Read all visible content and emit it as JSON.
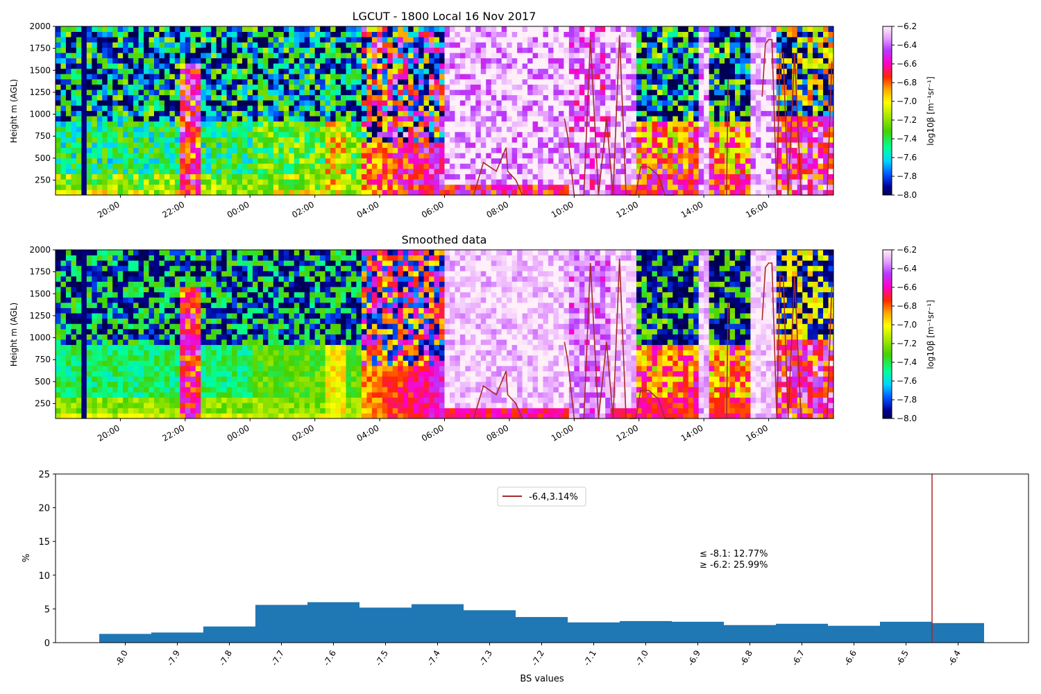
{
  "chart_data": [
    {
      "type": "heatmap",
      "title": "LGCUT - 1800 Local 16 Nov 2017",
      "ylabel": "Height m (AGL)",
      "ylim": [
        80,
        2000
      ],
      "yticks": [
        "250",
        "500",
        "750",
        "1000",
        "1250",
        "1500",
        "1750",
        "2000"
      ],
      "ytick_values": [
        250,
        500,
        750,
        1000,
        1250,
        1500,
        1750,
        2000
      ],
      "xlim_hours": [
        18.0,
        42.0
      ],
      "xticks": [
        "20:00",
        "22:00",
        "00:00",
        "02:00",
        "04:00",
        "06:00",
        "08:00",
        "10:00",
        "12:00",
        "14:00",
        "16:00"
      ],
      "xtick_hours": [
        20,
        22,
        24,
        26,
        28,
        30,
        32,
        34,
        36,
        38,
        40
      ],
      "colorbar": {
        "label": "log10β [m⁻¹sr⁻¹]",
        "range": [
          -8.0,
          -6.2
        ],
        "ticks": [
          "−6.2",
          "−6.4",
          "−6.6",
          "−6.8",
          "−7.0",
          "−7.2",
          "−7.4",
          "−7.6",
          "−7.8",
          "−8.0"
        ],
        "tick_values": [
          -6.2,
          -6.4,
          -6.6,
          -6.8,
          -7.0,
          -7.2,
          -7.4,
          -7.6,
          -7.8,
          -8.0
        ]
      },
      "overlay_line_color": "#a52a2a"
    },
    {
      "type": "heatmap",
      "title": "Smoothed data",
      "ylabel": "Height m (AGL)",
      "ylim": [
        80,
        2000
      ],
      "yticks": [
        "250",
        "500",
        "750",
        "1000",
        "1250",
        "1500",
        "1750",
        "2000"
      ],
      "ytick_values": [
        250,
        500,
        750,
        1000,
        1250,
        1500,
        1750,
        2000
      ],
      "xlim_hours": [
        18.0,
        42.0
      ],
      "xticks": [
        "20:00",
        "22:00",
        "00:00",
        "02:00",
        "04:00",
        "06:00",
        "08:00",
        "10:00",
        "12:00",
        "14:00",
        "16:00"
      ],
      "xtick_hours": [
        20,
        22,
        24,
        26,
        28,
        30,
        32,
        34,
        36,
        38,
        40
      ],
      "colorbar": {
        "label": "log10β [m⁻¹sr⁻¹]",
        "range": [
          -8.0,
          -6.2
        ],
        "ticks": [
          "−6.2",
          "−6.4",
          "−6.6",
          "−6.8",
          "−7.0",
          "−7.2",
          "−7.4",
          "−7.6",
          "−7.8",
          "−8.0"
        ],
        "tick_values": [
          -6.2,
          -6.4,
          -6.6,
          -6.8,
          -7.0,
          -7.2,
          -7.4,
          -7.6,
          -7.8,
          -8.0
        ]
      },
      "overlay_line_color": "#a52a2a"
    },
    {
      "type": "bar",
      "xlabel": "BS values",
      "ylabel": "%",
      "ylim": [
        0,
        25
      ],
      "yticks": [
        "0",
        "5",
        "10",
        "15",
        "20",
        "25"
      ],
      "ytick_values": [
        0,
        5,
        10,
        15,
        20,
        25
      ],
      "categories": [
        "-8.0",
        "-7.9",
        "-7.8",
        "-7.7",
        "-7.6",
        "-7.5",
        "-7.4",
        "-7.3",
        "-7.2",
        "-7.1",
        "-7.0",
        "-6.9",
        "-6.8",
        "-6.7",
        "-6.6",
        "-6.5",
        "-6.4"
      ],
      "values": [
        1.3,
        1.5,
        2.4,
        5.6,
        6.0,
        5.2,
        5.7,
        4.8,
        3.8,
        3.0,
        3.2,
        3.1,
        2.6,
        2.8,
        2.5,
        3.1,
        2.9
      ],
      "bar_color": "#1f77b4",
      "vline_at": -6.45,
      "vline_color": "#a52a2a",
      "legend": {
        "label": "-6.4,3.14%",
        "position": "upper center"
      },
      "annotations": [
        "≤ -8.1: 12.77%",
        "≥ -6.2: 25.99%"
      ]
    }
  ]
}
